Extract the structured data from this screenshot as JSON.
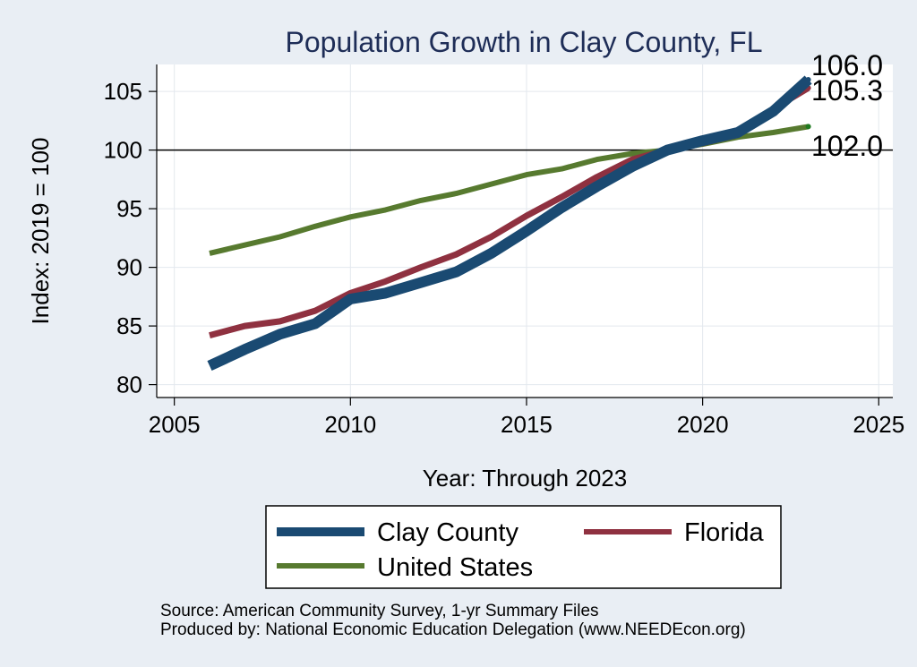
{
  "chart_data": {
    "type": "line",
    "title": "Population Growth in Clay County, FL",
    "xlabel": "Year: Through 2023",
    "ylabel": "Index: 2019 = 100",
    "xlim": [
      2004.5,
      2025.4
    ],
    "ylim": [
      78.9,
      107.3
    ],
    "xticks": [
      2005,
      2010,
      2015,
      2020,
      2025
    ],
    "yticks": [
      80,
      85,
      90,
      95,
      100,
      105
    ],
    "reference_line": 100,
    "x": [
      2006,
      2007,
      2008,
      2009,
      2010,
      2011,
      2012,
      2013,
      2014,
      2015,
      2016,
      2017,
      2018,
      2019,
      2020,
      2021,
      2022,
      2023
    ],
    "series": [
      {
        "name": "Clay  County",
        "color": "#1a4a72",
        "values": [
          81.6,
          83.0,
          84.3,
          85.2,
          87.3,
          87.8,
          88.7,
          89.6,
          91.2,
          93.1,
          95.1,
          96.9,
          98.6,
          100.0,
          100.8,
          101.5,
          103.3,
          106.0
        ],
        "end_label": "106.0"
      },
      {
        "name": "Florida",
        "color": "#8f3140",
        "values": [
          84.2,
          85.0,
          85.4,
          86.3,
          87.8,
          88.8,
          90.0,
          91.1,
          92.6,
          94.4,
          96.0,
          97.7,
          99.2,
          100.0,
          100.6,
          101.3,
          103.5,
          105.3
        ],
        "end_label": "105.3"
      },
      {
        "name": "United States",
        "color": "#577a2f",
        "values": [
          91.2,
          91.9,
          92.6,
          93.5,
          94.3,
          94.9,
          95.7,
          96.3,
          97.1,
          97.9,
          98.4,
          99.2,
          99.7,
          100.0,
          100.5,
          101.1,
          101.5,
          102.0
        ],
        "end_label": "102.0"
      }
    ],
    "legend": [
      "Clay  County",
      "Florida",
      "United States"
    ],
    "legend_position": "bottom",
    "source_note": "Source: American Community Survey, 1-yr Summary Files",
    "producer_note": "Produced by: National Economic Education Delegation (www.NEEDEcon.org)"
  }
}
